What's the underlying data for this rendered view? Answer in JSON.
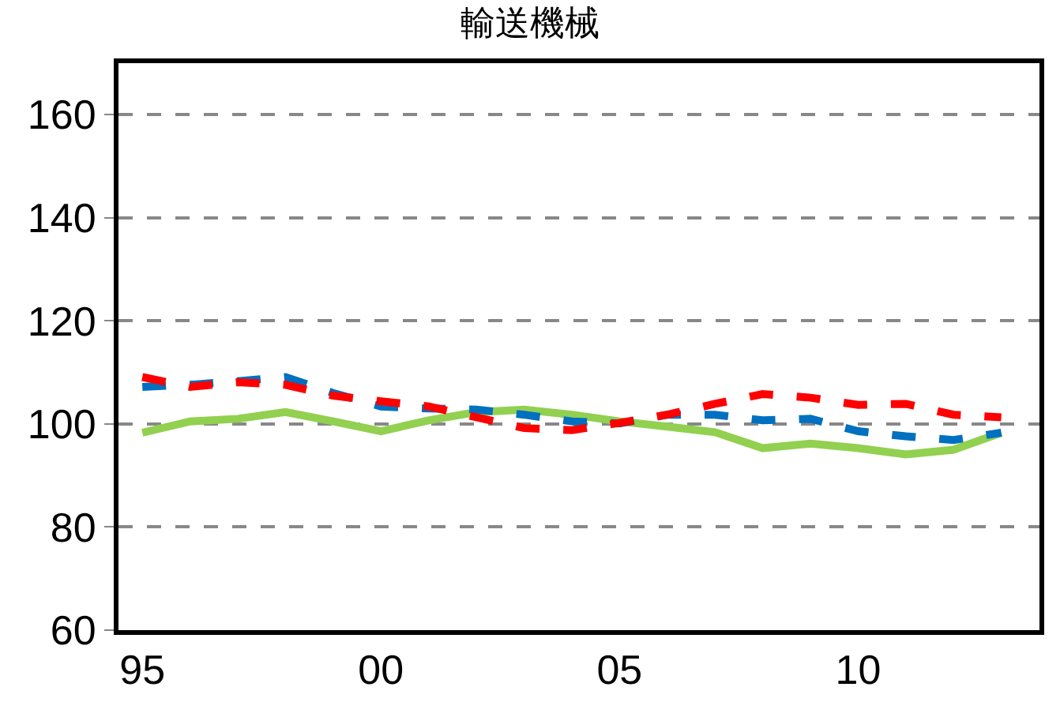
{
  "chart_data": {
    "type": "line",
    "title": "輸送機械",
    "categories": [
      "95",
      null,
      null,
      null,
      null,
      "00",
      null,
      null,
      null,
      null,
      "05",
      null,
      null,
      null,
      null,
      "10",
      null,
      null,
      null
    ],
    "series": [
      {
        "color": "#92d050",
        "line_style": "solid",
        "values": [
          98.3,
          100.5,
          101,
          102.3,
          100.5,
          98.6,
          100.7,
          102.3,
          102.8,
          101.8,
          100.5,
          99.5,
          98.4,
          95.3,
          96.2,
          95.3,
          94.1,
          95,
          98.3
        ]
      },
      {
        "color": "#0070c0",
        "line_style": "dashed",
        "values": [
          107.2,
          107.6,
          108.3,
          109.1,
          106,
          103.4,
          103,
          102.8,
          101.8,
          100.5,
          100.1,
          101.8,
          101.8,
          100.7,
          101,
          98.6,
          97.6,
          96.9,
          98.3
        ]
      },
      {
        "color": "#ff0000",
        "line_style": "dashed",
        "values": [
          109.1,
          107.2,
          108.1,
          107.6,
          105.5,
          104.4,
          103.4,
          101.3,
          99.2,
          98.8,
          100.2,
          101.8,
          103.9,
          105.8,
          105.1,
          103.7,
          103.9,
          101.8,
          101.3
        ]
      }
    ],
    "ylim": [
      60,
      170
    ],
    "yticks": [
      60,
      80,
      100,
      120,
      140,
      160
    ],
    "grid": "y",
    "legend": false,
    "marker": "none"
  }
}
